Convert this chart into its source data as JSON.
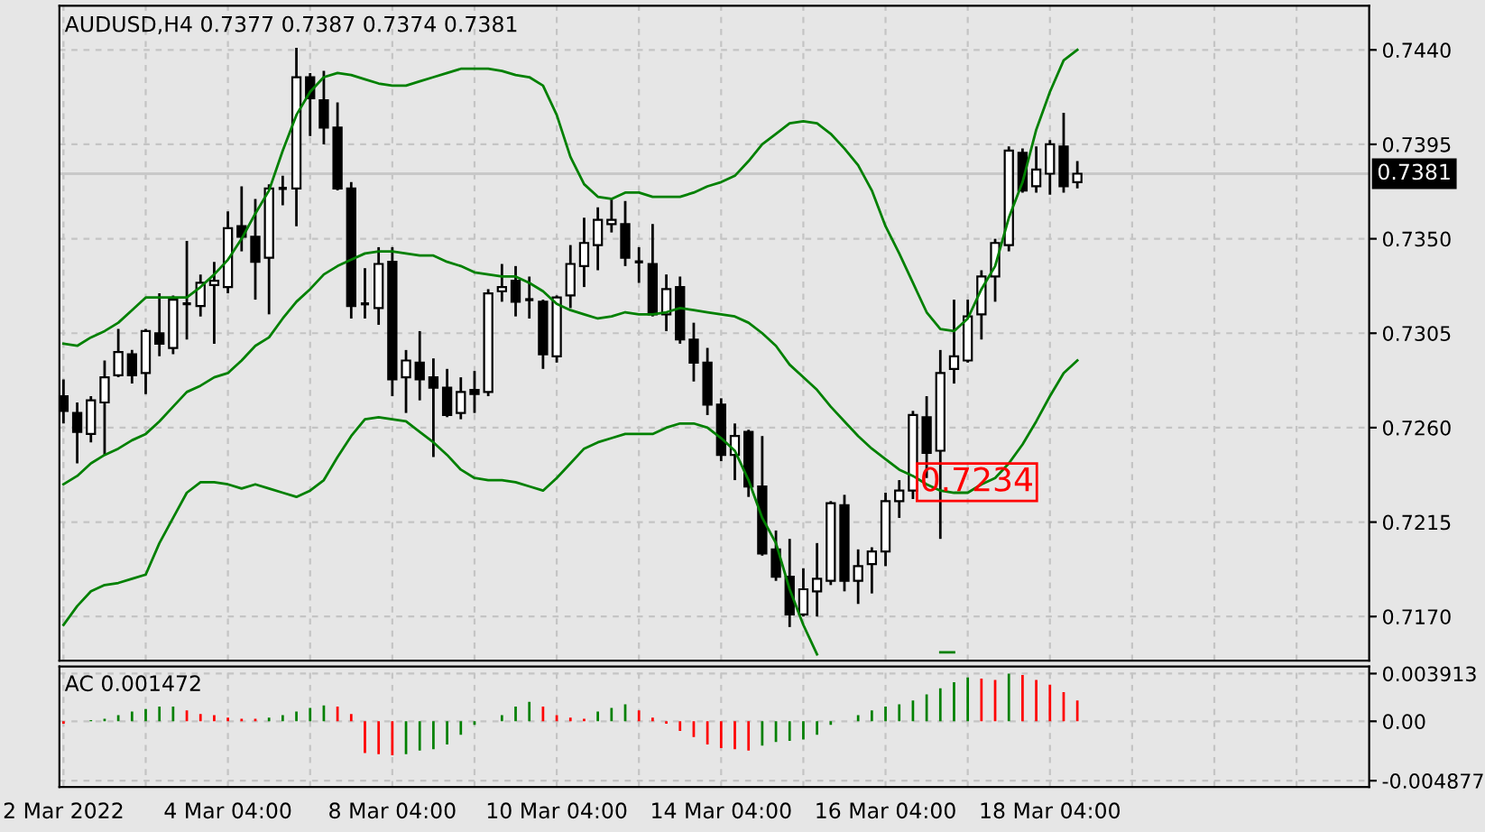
{
  "chart_data": [
    {
      "type": "candlestick",
      "title": "AUDUSD,H4 0.7377 0.7387 0.7374 0.7381",
      "categories": [
        null,
        null,
        null,
        null,
        null,
        null,
        null,
        null,
        null,
        null,
        null,
        null,
        null,
        null,
        null,
        null,
        null,
        null,
        null,
        null,
        null,
        null,
        null,
        null,
        null,
        null,
        null,
        null,
        null,
        null,
        null,
        null,
        null,
        null,
        null,
        null,
        null,
        null,
        null,
        null,
        null,
        null,
        null,
        null,
        null,
        null,
        null,
        null,
        null,
        null,
        null,
        null,
        null,
        null,
        null,
        null,
        null,
        null,
        null,
        null,
        null,
        null,
        null,
        null,
        null,
        null,
        null,
        null,
        null,
        null,
        null,
        null,
        null,
        null,
        null,
        null,
        null,
        null,
        null,
        null,
        null,
        null,
        null,
        null,
        null,
        null,
        null,
        null,
        null,
        null,
        null,
        null,
        null,
        null,
        null,
        null
      ],
      "ohlc": [
        [
          0.7275,
          0.7283,
          0.7262,
          0.7268
        ],
        [
          0.7267,
          0.7272,
          0.7243,
          0.7258
        ],
        [
          0.7257,
          0.7275,
          0.7253,
          0.7273
        ],
        [
          0.7272,
          0.7292,
          0.7247,
          0.7284
        ],
        [
          0.7285,
          0.7307,
          0.7284,
          0.7296
        ],
        [
          0.7295,
          0.7297,
          0.7281,
          0.7285
        ],
        [
          0.7286,
          0.7307,
          0.7276,
          0.7306
        ],
        [
          0.7305,
          0.7324,
          0.7294,
          0.73
        ],
        [
          0.7298,
          0.7323,
          0.7295,
          0.7321
        ],
        [
          0.7319,
          0.7349,
          0.7302,
          0.7319
        ],
        [
          0.7318,
          0.7333,
          0.7313,
          0.7329
        ],
        [
          0.7328,
          0.7339,
          0.73,
          0.733
        ],
        [
          0.7327,
          0.7363,
          0.7324,
          0.7355
        ],
        [
          0.7356,
          0.7375,
          0.7344,
          0.7351
        ],
        [
          0.7351,
          0.7369,
          0.7321,
          0.7339
        ],
        [
          0.7341,
          0.7376,
          0.7314,
          0.7374
        ],
        [
          0.7374,
          0.738,
          0.7366,
          0.7374
        ],
        [
          0.7374,
          0.7441,
          0.7356,
          0.7427
        ],
        [
          0.7427,
          0.7429,
          0.7399,
          0.7417
        ],
        [
          0.7416,
          0.743,
          0.7395,
          0.7403
        ],
        [
          0.7403,
          0.7415,
          0.7373,
          0.7374
        ],
        [
          0.7374,
          0.7377,
          0.7312,
          0.7318
        ],
        [
          0.7319,
          0.7336,
          0.7312,
          0.7319
        ],
        [
          0.7317,
          0.7346,
          0.7309,
          0.7338
        ],
        [
          0.7339,
          0.7346,
          0.7275,
          0.7283
        ],
        [
          0.7284,
          0.7297,
          0.7267,
          0.7292
        ],
        [
          0.7291,
          0.7306,
          0.7273,
          0.7283
        ],
        [
          0.7284,
          0.7293,
          0.7246,
          0.7279
        ],
        [
          0.7279,
          0.7288,
          0.7265,
          0.7266
        ],
        [
          0.7267,
          0.7284,
          0.7264,
          0.7277
        ],
        [
          0.7278,
          0.7287,
          0.7267,
          0.7276
        ],
        [
          0.7277,
          0.7326,
          0.7275,
          0.7324
        ],
        [
          0.7325,
          0.7338,
          0.732,
          0.7327
        ],
        [
          0.733,
          0.7337,
          0.7313,
          0.732
        ],
        [
          0.7321,
          0.7332,
          0.7312,
          0.7321
        ],
        [
          0.732,
          0.7321,
          0.7288,
          0.7295
        ],
        [
          0.7294,
          0.7323,
          0.7291,
          0.7322
        ],
        [
          0.7323,
          0.7347,
          0.7317,
          0.7338
        ],
        [
          0.7337,
          0.736,
          0.7327,
          0.7348
        ],
        [
          0.7347,
          0.7365,
          0.7335,
          0.7359
        ],
        [
          0.7357,
          0.7369,
          0.7353,
          0.7359
        ],
        [
          0.7357,
          0.7368,
          0.7337,
          0.7341
        ],
        [
          0.7339,
          0.7346,
          0.7329,
          0.7339
        ],
        [
          0.7338,
          0.7357,
          0.7313,
          0.7314
        ],
        [
          0.7314,
          0.7333,
          0.7306,
          0.7326
        ],
        [
          0.7327,
          0.7332,
          0.73,
          0.7302
        ],
        [
          0.7302,
          0.731,
          0.7282,
          0.7291
        ],
        [
          0.7291,
          0.7298,
          0.7266,
          0.7271
        ],
        [
          0.7271,
          0.7274,
          0.7244,
          0.7247
        ],
        [
          0.7247,
          0.7262,
          0.7235,
          0.7256
        ],
        [
          0.7258,
          0.7259,
          0.7227,
          0.7232
        ],
        [
          0.7232,
          0.7256,
          0.7199,
          0.72
        ],
        [
          0.7202,
          0.7211,
          0.7187,
          0.7189
        ],
        [
          0.7189,
          0.7207,
          0.7165,
          0.7171
        ],
        [
          0.7171,
          0.7193,
          0.717,
          0.7183
        ],
        [
          0.7182,
          0.7205,
          0.717,
          0.7188
        ],
        [
          0.7187,
          0.7225,
          0.7185,
          0.7224
        ],
        [
          0.7223,
          0.7228,
          0.7182,
          0.7187
        ],
        [
          0.7187,
          0.7202,
          0.7176,
          0.7194
        ],
        [
          0.7195,
          0.7203,
          0.7181,
          0.7201
        ],
        [
          0.7201,
          0.7229,
          0.7194,
          0.7225
        ],
        [
          0.7225,
          0.7235,
          0.7217,
          0.723
        ],
        [
          0.723,
          0.7268,
          0.7226,
          0.7266
        ],
        [
          0.7265,
          0.7275,
          0.7236,
          0.7248
        ],
        [
          0.7249,
          0.7297,
          0.7207,
          0.7286
        ],
        [
          0.7288,
          0.7321,
          0.7281,
          0.7294
        ],
        [
          0.7292,
          0.7321,
          0.7291,
          0.7313
        ],
        [
          0.7314,
          0.7335,
          0.7302,
          0.7332
        ],
        [
          0.7332,
          0.735,
          0.732,
          0.7348
        ],
        [
          0.7347,
          0.7394,
          0.7344,
          0.7392
        ],
        [
          0.7391,
          0.7393,
          0.7372,
          0.7373
        ],
        [
          0.7375,
          0.7394,
          0.7372,
          0.7383
        ],
        [
          0.7381,
          0.7397,
          0.7371,
          0.7395
        ],
        [
          0.7394,
          0.741,
          0.7372,
          0.7375
        ],
        [
          0.7377,
          0.7387,
          0.7374,
          0.7381
        ],
        null,
        null,
        null,
        null,
        null,
        null,
        null,
        null,
        null,
        null,
        null,
        null,
        null,
        null,
        null,
        null,
        null,
        null,
        null,
        null,
        null
      ],
      "series": [
        {
          "type": "line",
          "color": "#008000",
          "values": [
            0.73,
            0.7299,
            0.7303,
            0.7306,
            0.731,
            0.7316,
            0.7322,
            0.7322,
            0.7322,
            0.7322,
            0.7327,
            0.7333,
            0.734,
            0.735,
            0.7362,
            0.7373,
            0.7392,
            0.7409,
            0.742,
            0.7427,
            0.7429,
            0.7428,
            0.7426,
            0.7424,
            0.7423,
            0.7423,
            0.7425,
            0.7427,
            0.7429,
            0.7431,
            0.7431,
            0.7431,
            0.743,
            0.7428,
            0.7427,
            0.7423,
            0.7409,
            0.7389,
            0.7376,
            0.737,
            0.7369,
            0.7372,
            0.7372,
            0.737,
            0.737,
            0.737,
            0.7372,
            0.7375,
            0.7377,
            0.738,
            0.7387,
            0.7395,
            0.74,
            0.7405,
            0.7406,
            0.7405,
            0.74,
            0.7393,
            0.7385,
            0.7373,
            0.7356,
            0.7343,
            0.7329,
            0.7315,
            0.7307,
            0.7306,
            0.7312,
            0.7326,
            0.7337,
            0.736,
            0.7377,
            0.7402,
            0.742,
            0.7435,
            0.744,
            null,
            null,
            null,
            null,
            null,
            null,
            null,
            null,
            null,
            null,
            null,
            null,
            null,
            null,
            null,
            null,
            null,
            null,
            null,
            null,
            null
          ]
        },
        {
          "type": "line",
          "color": "#008000",
          "values": [
            0.7233,
            0.7237,
            0.7243,
            0.7247,
            0.725,
            0.7254,
            0.7257,
            0.7263,
            0.727,
            0.7277,
            0.728,
            0.7284,
            0.7286,
            0.7292,
            0.7299,
            0.7303,
            0.7312,
            0.732,
            0.7326,
            0.7333,
            0.7337,
            0.734,
            0.7343,
            0.7344,
            0.7344,
            0.7343,
            0.7342,
            0.7342,
            0.7339,
            0.7337,
            0.7334,
            0.7333,
            0.7332,
            0.7332,
            0.7329,
            0.7325,
            0.7319,
            0.7316,
            0.7314,
            0.7312,
            0.7313,
            0.7315,
            0.7314,
            0.7314,
            0.7315,
            0.7317,
            0.7316,
            0.7315,
            0.7314,
            0.7313,
            0.731,
            0.7305,
            0.7299,
            0.729,
            0.7284,
            0.7278,
            0.727,
            0.7263,
            0.7256,
            0.725,
            0.7245,
            0.724,
            0.7237,
            0.7233,
            0.723,
            0.7229,
            0.7229,
            0.7233,
            0.7236,
            0.7243,
            0.7252,
            0.7263,
            0.7275,
            0.7286,
            0.7292,
            null,
            null,
            null,
            null,
            null,
            null,
            null,
            null,
            null,
            null,
            null,
            null,
            null,
            null,
            null,
            null,
            null,
            null,
            null,
            null,
            null
          ]
        },
        {
          "type": "line",
          "color": "#008000",
          "values": [
            0.7166,
            0.7175,
            0.7182,
            0.7185,
            0.7186,
            0.7188,
            0.719,
            0.7205,
            0.7217,
            0.7229,
            0.7234,
            0.7234,
            0.7233,
            0.7231,
            0.7233,
            0.7231,
            0.7229,
            0.7227,
            0.723,
            0.7235,
            0.7246,
            0.7256,
            0.7264,
            0.7265,
            0.7264,
            0.7263,
            0.7258,
            0.7253,
            0.7247,
            0.724,
            0.7236,
            0.7235,
            0.7235,
            0.7234,
            0.7232,
            0.723,
            0.7236,
            0.7243,
            0.725,
            0.7253,
            0.7255,
            0.7257,
            0.7257,
            0.7257,
            0.726,
            0.7262,
            0.7262,
            0.726,
            0.7255,
            0.7249,
            0.7235,
            0.7217,
            0.7205,
            0.7183,
            0.7166,
            0.7152,
            null,
            null,
            null,
            null,
            null,
            null,
            null,
            null,
            0.7153,
            0.7153,
            null,
            null,
            null,
            null,
            null,
            null,
            null,
            null,
            null,
            null,
            null,
            null,
            null,
            null,
            null,
            null,
            null,
            null,
            null,
            null,
            null,
            null,
            null,
            null,
            null,
            null,
            null,
            null,
            null,
            null
          ]
        }
      ],
      "ylim": [
        0.7149,
        0.7461
      ],
      "yticks": [
        {
          "value": 0.744,
          "label": "0.7440"
        },
        0.7395,
        {
          "value": 0.735,
          "label": "0.7350"
        },
        0.7305,
        {
          "value": 0.726,
          "label": "0.7260"
        },
        0.7215,
        {
          "value": 0.717,
          "label": "0.7170"
        }
      ],
      "ref_lines": [
        {
          "axis": "y",
          "value": 0.7381,
          "label": "0.7381",
          "color": "#c8c8c8"
        }
      ],
      "annotations": [
        {
          "text": "0.7234",
          "y": 0.7234
        }
      ],
      "grid": true,
      "tick_labels": "y"
    },
    {
      "type": "bar",
      "title": "AC 0.001472",
      "categories": [
        "2 Mar 2022",
        null,
        null,
        null,
        null,
        null,
        null,
        null,
        null,
        null,
        null,
        null,
        "4 Mar 04:00",
        null,
        null,
        null,
        null,
        null,
        null,
        null,
        null,
        null,
        null,
        null,
        "8 Mar 04:00",
        null,
        null,
        null,
        null,
        null,
        null,
        null,
        null,
        null,
        null,
        null,
        "10 Mar 04:00",
        null,
        null,
        null,
        null,
        null,
        null,
        null,
        null,
        null,
        null,
        null,
        "14 Mar 04:00",
        null,
        null,
        null,
        null,
        null,
        null,
        null,
        null,
        null,
        null,
        null,
        "16 Mar 04:00",
        null,
        null,
        null,
        null,
        null,
        null,
        null,
        null,
        null,
        null,
        null,
        "18 Mar 04:00",
        null,
        null,
        null,
        null,
        null,
        null,
        null,
        null,
        null,
        null,
        null,
        null,
        null,
        null,
        null,
        null,
        null,
        null,
        null,
        null,
        null,
        null,
        null
      ],
      "values": [
        -0.0002,
        0.0,
        0.0001,
        0.0002,
        0.0005,
        0.0008,
        0.001,
        0.0012,
        0.0012,
        0.0009,
        0.0006,
        0.0005,
        0.0003,
        0.0002,
        0.0002,
        0.0003,
        0.0005,
        0.0008,
        0.0011,
        0.0013,
        0.0012,
        0.0006,
        -0.0026,
        -0.0027,
        -0.0028,
        -0.0027,
        -0.0024,
        -0.0023,
        -0.0019,
        -0.0011,
        -0.0003,
        0.0,
        0.0005,
        0.0012,
        0.0016,
        0.0012,
        0.0005,
        0.0003,
        0.0002,
        0.0008,
        0.0011,
        0.0014,
        0.0009,
        0.0003,
        -0.0002,
        -0.0008,
        -0.0013,
        -0.0019,
        -0.0022,
        -0.0023,
        -0.0024,
        -0.002,
        -0.0017,
        -0.0016,
        -0.0015,
        -0.0011,
        -0.0003,
        0.0,
        0.0005,
        0.0009,
        0.0012,
        0.0014,
        0.0017,
        0.0022,
        0.0027,
        0.0032,
        0.0036,
        0.0035,
        0.0034,
        0.0039,
        0.0038,
        0.0034,
        0.003,
        0.0024,
        0.0017,
        null,
        null,
        null,
        null,
        null,
        null,
        null,
        null,
        null,
        null,
        null,
        null,
        null,
        null,
        null,
        null,
        null,
        null,
        null,
        null,
        null
      ],
      "colors": [
        "#ff0000",
        "#008000",
        "#008000",
        "#008000",
        "#008000",
        "#008000",
        "#008000",
        "#008000",
        "#008000",
        "#ff0000",
        "#ff0000",
        "#ff0000",
        "#ff0000",
        "#ff0000",
        "#ff0000",
        "#008000",
        "#008000",
        "#008000",
        "#008000",
        "#008000",
        "#ff0000",
        "#ff0000",
        "#ff0000",
        "#ff0000",
        "#ff0000",
        "#008000",
        "#008000",
        "#008000",
        "#008000",
        "#008000",
        "#008000",
        "#008000",
        "#008000",
        "#008000",
        "#008000",
        "#ff0000",
        "#ff0000",
        "#ff0000",
        "#ff0000",
        "#008000",
        "#008000",
        "#008000",
        "#ff0000",
        "#ff0000",
        "#ff0000",
        "#ff0000",
        "#ff0000",
        "#ff0000",
        "#ff0000",
        "#ff0000",
        "#ff0000",
        "#008000",
        "#008000",
        "#008000",
        "#008000",
        "#008000",
        "#008000",
        "#008000",
        "#008000",
        "#008000",
        "#008000",
        "#008000",
        "#008000",
        "#008000",
        "#008000",
        "#008000",
        "#008000",
        "#ff0000",
        "#ff0000",
        "#008000",
        "#ff0000",
        "#ff0000",
        "#ff0000",
        "#ff0000",
        "#ff0000",
        null,
        null,
        null,
        null,
        null,
        null,
        null,
        null,
        null,
        null,
        null,
        null,
        null,
        null,
        null,
        null,
        null,
        null,
        null,
        null,
        null
      ],
      "ylim": [
        -0.0054,
        0.0045
      ],
      "yticks": [
        0.003913,
        {
          "value": 0,
          "label": "0.00"
        },
        -0.004877
      ],
      "grid": true
    }
  ]
}
